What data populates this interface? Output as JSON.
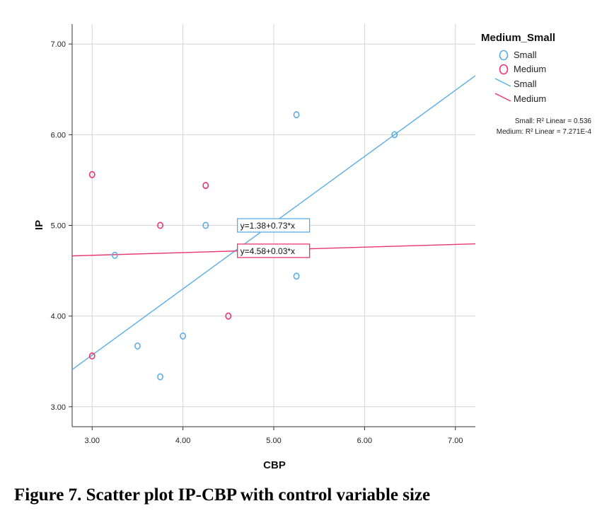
{
  "caption": "Figure 7. Scatter plot IP-CBP with control variable size",
  "chart_data": {
    "type": "scatter",
    "xlabel": "CBP",
    "ylabel": "IP",
    "xlim": [
      2.78,
      7.22
    ],
    "ylim": [
      2.78,
      7.22
    ],
    "xticks": [
      "3.00",
      "4.00",
      "5.00",
      "6.00",
      "7.00"
    ],
    "yticks": [
      "3.00",
      "4.00",
      "5.00",
      "6.00",
      "7.00"
    ],
    "grid": true,
    "legend": {
      "title": "Medium_Small",
      "placement": "right",
      "entries": [
        {
          "label": "Small",
          "kind": "marker",
          "series": "Small"
        },
        {
          "label": "Medium",
          "kind": "marker",
          "series": "Medium"
        },
        {
          "label": "Small",
          "kind": "line",
          "series": "Small"
        },
        {
          "label": "Medium",
          "kind": "line",
          "series": "Medium"
        }
      ],
      "r2_lines": [
        "Small: R² Linear = 0.536",
        "Medium: R² Linear = 7.271E-4"
      ]
    },
    "series": [
      {
        "name": "Small",
        "color": "#5aaee6",
        "points": [
          [
            3.25,
            4.67
          ],
          [
            3.5,
            3.67
          ],
          [
            3.75,
            3.33
          ],
          [
            4.0,
            3.78
          ],
          [
            4.25,
            5.0
          ],
          [
            5.25,
            6.22
          ],
          [
            5.25,
            4.44
          ],
          [
            6.33,
            6.0
          ]
        ],
        "fit": {
          "intercept": 1.38,
          "slope": 0.73,
          "label": "y=1.38+0.73*x"
        }
      },
      {
        "name": "Medium",
        "color": "#e8356f",
        "points": [
          [
            3.0,
            5.56
          ],
          [
            3.0,
            3.56
          ],
          [
            3.75,
            5.0
          ],
          [
            4.25,
            5.44
          ],
          [
            4.5,
            4.0
          ]
        ],
        "fit": {
          "intercept": 4.58,
          "slope": 0.03,
          "label": "y=4.58+0.03*x"
        }
      }
    ]
  }
}
